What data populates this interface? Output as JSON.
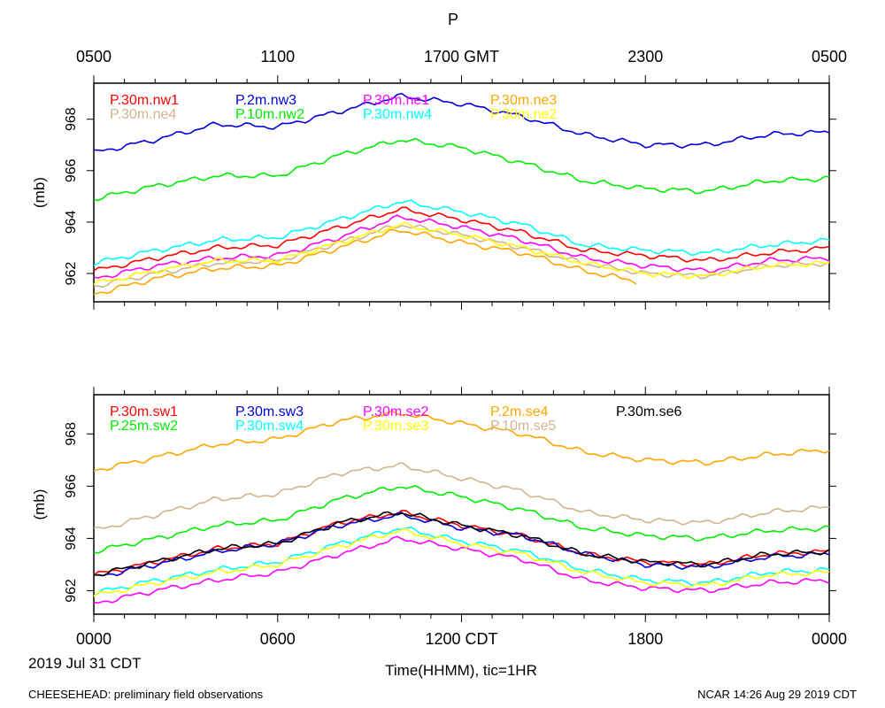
{
  "page": {
    "title": "P",
    "footer_left": "CHEESEHEAD: preliminary field observations",
    "footer_right": "NCAR 14:26 Aug 29 2019 CDT",
    "date_label": "2019 Jul 31 CDT",
    "xlabel": "Time(HHMM), tic=1HR"
  },
  "top_axis": {
    "labels": [
      "0500",
      "1100",
      "1700 GMT",
      "2300",
      "0500"
    ],
    "hours": [
      0,
      6,
      12,
      18,
      24
    ]
  },
  "bottom_axis": {
    "labels": [
      "0000",
      "0600",
      "1200 CDT",
      "1800",
      "0000"
    ],
    "hours": [
      0,
      6,
      12,
      18,
      24
    ]
  },
  "chart_data": [
    {
      "type": "line",
      "ylabel": "(mb)",
      "ylim": [
        960.9,
        969.4
      ],
      "xlim": [
        0,
        24
      ],
      "yticks": [
        962,
        964,
        966,
        968
      ],
      "series": [
        {
          "name": "P.30m.nw1",
          "color": "#ff0000",
          "x": [
            0,
            2,
            4,
            6,
            8,
            10,
            12,
            14,
            16,
            18,
            20,
            22,
            24
          ],
          "values": [
            962.1,
            962.6,
            963.0,
            963.1,
            963.8,
            964.5,
            964.1,
            963.6,
            962.9,
            962.7,
            962.5,
            962.8,
            963.0
          ]
        },
        {
          "name": "P.2m.nw3",
          "color": "#0000dd",
          "x": [
            0,
            2,
            4,
            6,
            8,
            10,
            12,
            14,
            16,
            18,
            20,
            22,
            24
          ],
          "values": [
            966.7,
            967.2,
            967.8,
            967.7,
            968.3,
            968.9,
            968.6,
            968.1,
            967.4,
            967.0,
            967.0,
            967.4,
            967.5
          ]
        },
        {
          "name": "P.30m.ne1",
          "color": "#ff00ff",
          "x": [
            0,
            2,
            4,
            6,
            8,
            10,
            12,
            14,
            16,
            18,
            20,
            22,
            24
          ],
          "values": [
            961.8,
            962.3,
            962.6,
            962.7,
            963.4,
            964.2,
            963.8,
            963.3,
            962.6,
            962.3,
            962.1,
            962.5,
            962.6
          ]
        },
        {
          "name": "P.30m.ne3",
          "color": "#ffa500",
          "x": [
            0,
            2,
            4,
            6,
            8,
            10,
            12,
            14,
            16,
            17.7
          ],
          "values": [
            961.2,
            961.8,
            962.2,
            962.3,
            963.0,
            963.7,
            963.2,
            962.8,
            962.1,
            961.7
          ]
        },
        {
          "name": "P.30m.ne4",
          "color": "#d2b48c",
          "x": [
            0,
            2,
            4,
            6,
            8,
            10,
            12,
            14,
            16,
            18,
            20,
            22,
            24
          ],
          "values": [
            961.5,
            962.0,
            962.4,
            962.5,
            963.2,
            963.9,
            963.5,
            963.0,
            962.4,
            962.0,
            961.9,
            962.3,
            962.4
          ]
        },
        {
          "name": "P.10m.nw2",
          "color": "#00ee00",
          "x": [
            0,
            2,
            4,
            6,
            8,
            10,
            12,
            14,
            16,
            18,
            20,
            22,
            24
          ],
          "values": [
            964.9,
            965.4,
            965.8,
            965.8,
            966.6,
            967.2,
            966.9,
            966.3,
            965.6,
            965.3,
            965.2,
            965.6,
            965.7
          ]
        },
        {
          "name": "P.30m.nw4",
          "color": "#00ffff",
          "x": [
            0,
            2,
            4,
            6,
            8,
            10,
            12,
            14,
            16,
            18,
            20,
            22,
            24
          ],
          "values": [
            962.4,
            962.9,
            963.3,
            963.4,
            964.1,
            964.8,
            964.4,
            963.9,
            963.1,
            962.9,
            962.8,
            963.1,
            963.3
          ]
        },
        {
          "name": "P.30m.ne2",
          "color": "#ffff00",
          "x": [
            0,
            2,
            4,
            6,
            8,
            10,
            12,
            14,
            16,
            18,
            20,
            22,
            24
          ],
          "values": [
            961.6,
            962.1,
            962.5,
            962.5,
            963.2,
            963.9,
            963.5,
            963.0,
            962.4,
            962.0,
            961.9,
            962.3,
            962.4
          ]
        }
      ]
    },
    {
      "type": "line",
      "ylabel": "(mb)",
      "ylim": [
        961.1,
        969.5
      ],
      "xlim": [
        0,
        24
      ],
      "yticks": [
        962,
        964,
        966,
        968
      ],
      "series": [
        {
          "name": "P.30m.sw1",
          "color": "#ff0000",
          "x": [
            0,
            2,
            4,
            6,
            8,
            10,
            12,
            14,
            16,
            18,
            20,
            22,
            24
          ],
          "values": [
            962.6,
            963.1,
            963.6,
            963.8,
            964.6,
            965.0,
            964.5,
            964.1,
            963.4,
            963.1,
            963.0,
            963.4,
            963.5
          ]
        },
        {
          "name": "P.30m.sw3",
          "color": "#0000dd",
          "x": [
            0,
            2,
            4,
            6,
            8,
            10,
            12,
            14,
            16,
            18,
            20,
            22,
            24
          ],
          "values": [
            962.5,
            963.0,
            963.5,
            963.8,
            964.5,
            964.9,
            964.4,
            964.1,
            963.4,
            963.0,
            962.9,
            963.3,
            963.4
          ]
        },
        {
          "name": "P.30m.se2",
          "color": "#ff00ff",
          "x": [
            0,
            2,
            4,
            6,
            8,
            10,
            12,
            14,
            16,
            18,
            20,
            22,
            24
          ],
          "values": [
            961.5,
            962.0,
            962.4,
            962.7,
            963.4,
            964.0,
            963.6,
            963.2,
            962.4,
            962.1,
            962.0,
            962.3,
            962.4
          ]
        },
        {
          "name": "P.2m.se4",
          "color": "#ffa500",
          "x": [
            0,
            2,
            4,
            6,
            8,
            10,
            12,
            14,
            16,
            18,
            20,
            22,
            24
          ],
          "values": [
            966.6,
            967.1,
            967.6,
            967.8,
            968.5,
            968.8,
            968.4,
            968.0,
            967.3,
            967.0,
            966.9,
            967.2,
            967.4
          ]
        },
        {
          "name": "P.30m.se6",
          "color": "#000000",
          "x": [
            0,
            2,
            4,
            6,
            8,
            10,
            12,
            14,
            16,
            18,
            20,
            22,
            24
          ],
          "values": [
            962.6,
            963.1,
            963.6,
            963.8,
            964.6,
            965.0,
            964.5,
            964.1,
            963.4,
            963.1,
            963.0,
            963.4,
            963.5
          ]
        },
        {
          "name": "P.25m.sw2",
          "color": "#00ee00",
          "x": [
            0,
            2,
            4,
            6,
            8,
            10,
            12,
            14,
            16,
            18,
            20,
            22,
            24
          ],
          "values": [
            963.5,
            964.0,
            964.5,
            964.7,
            965.5,
            966.0,
            965.6,
            965.1,
            964.4,
            964.1,
            964.0,
            964.3,
            964.4
          ]
        },
        {
          "name": "P.30m.sw4",
          "color": "#00ffff",
          "x": [
            0,
            2,
            4,
            6,
            8,
            10,
            12,
            14,
            16,
            18,
            20,
            22,
            24
          ],
          "values": [
            961.9,
            962.4,
            962.8,
            963.1,
            963.8,
            964.4,
            963.9,
            963.5,
            962.8,
            962.4,
            962.3,
            962.7,
            962.8
          ]
        },
        {
          "name": "P.30m.se3",
          "color": "#ffff00",
          "x": [
            0,
            2,
            4,
            6,
            8,
            10,
            12,
            14,
            16,
            18,
            20,
            22,
            24
          ],
          "values": [
            961.8,
            962.3,
            962.7,
            963.0,
            963.7,
            964.3,
            963.8,
            963.4,
            962.7,
            962.3,
            962.2,
            962.6,
            962.7
          ]
        },
        {
          "name": "P.10m.se5",
          "color": "#d2b48c",
          "x": [
            0,
            2,
            4,
            6,
            8,
            10,
            12,
            14,
            16,
            18,
            20,
            22,
            24
          ],
          "values": [
            964.3,
            964.9,
            965.5,
            965.7,
            966.5,
            966.8,
            966.3,
            965.8,
            965.0,
            964.7,
            964.6,
            965.0,
            965.2
          ]
        }
      ]
    }
  ]
}
